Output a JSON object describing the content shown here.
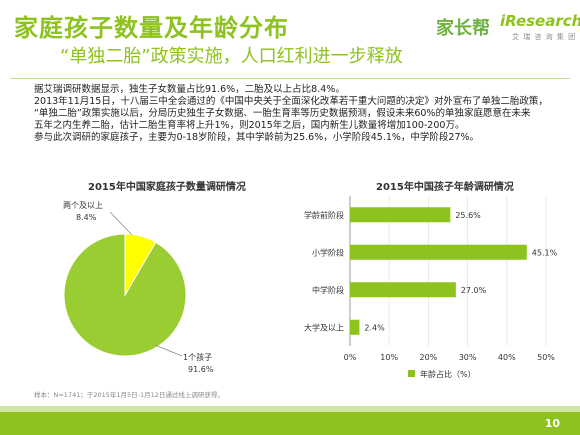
{
  "header": {
    "title": "家庭孩子数量及年龄分布",
    "subtitle": "“单独二胎”政策实施，人口红利进一步释放",
    "logo_left": "家长帮",
    "logo_right": "iResearch",
    "logo_right_sub": "艾 瑞 咨 询 集 团"
  },
  "body": {
    "lines": [
      "据艾瑞调研数据显示，独生子女数量占比91.6%，二胎及以上占比8.4%。",
      "2013年11月15日，十八届三中全会通过的《中国中央关于全面深化改革若干重大问题的决定》对外宣布了单独二胎政策，",
      "“单独二胎”政策实施以后，分局历史独生子女数据、一胎生育率等历史数据预测，假设未来60%的单独家庭愿意在未来",
      "五年之内生养二胎，估计二胎生育率将上升1%，则2015年之后，国内新生儿数量将增加100-200万。",
      "参与此次调研的家庭孩子，主要为0-18岁阶段，其中学龄前为25.6%，小学阶段45.1%，中学阶段27%。"
    ]
  },
  "colors": {
    "accent": "#8dc21f",
    "pie_main": "#9acd32",
    "pie_minor": "#ffff00"
  },
  "footnote": "样本：N=1741；于2015年1月5日-1月12日通过线上调研获得。",
  "page_number": "10",
  "chart_data": [
    {
      "type": "pie",
      "title": "2015年中国家庭孩子数量调研情况",
      "slices": [
        {
          "label": "1个孩子",
          "value": 91.6,
          "value_label": "91.6%"
        },
        {
          "label": "两个及以上",
          "value": 8.4,
          "value_label": "8.4%"
        }
      ]
    },
    {
      "type": "bar",
      "orientation": "horizontal",
      "title": "2015年中国孩子年龄调研情况",
      "categories": [
        "学龄前阶段",
        "小学阶段",
        "中学阶段",
        "大学及以上"
      ],
      "values": [
        25.6,
        45.1,
        27.0,
        2.4
      ],
      "value_labels": [
        "25.6%",
        "45.1%",
        "27.0%",
        "2.4%"
      ],
      "xlim": [
        0,
        50
      ],
      "x_ticks": [
        "0%",
        "10%",
        "20%",
        "30%",
        "40%",
        "50%"
      ],
      "legend": "年龄占比（%）",
      "legend_position": "bottom"
    }
  ]
}
